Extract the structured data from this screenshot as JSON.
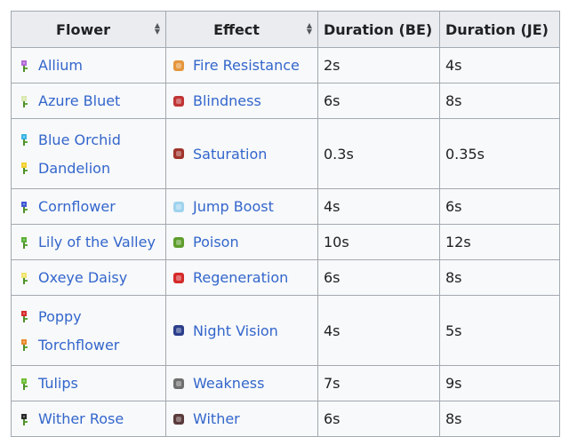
{
  "table": {
    "headers": {
      "flower": "Flower",
      "effect": "Effect",
      "duration_be": "Duration (BE)",
      "duration_je": "Duration (JE)"
    },
    "rows": [
      {
        "flowers": [
          {
            "name": "Allium",
            "icon": "allium-icon",
            "color": "#b36ad8"
          }
        ],
        "effect": {
          "name": "Fire Resistance",
          "icon": "fire-resistance-icon",
          "color": "#e5963c"
        },
        "duration_be": "2s",
        "duration_je": "4s"
      },
      {
        "flowers": [
          {
            "name": "Azure Bluet",
            "icon": "azure-bluet-icon",
            "color": "#d9e8b0"
          }
        ],
        "effect": {
          "name": "Blindness",
          "icon": "blindness-icon",
          "color": "#c03535"
        },
        "duration_be": "6s",
        "duration_je": "8s"
      },
      {
        "flowers": [
          {
            "name": "Blue Orchid",
            "icon": "blue-orchid-icon",
            "color": "#3ab5e6"
          },
          {
            "name": "Dandelion",
            "icon": "dandelion-icon",
            "color": "#f2d12c"
          }
        ],
        "effect": {
          "name": "Saturation",
          "icon": "saturation-icon",
          "color": "#a0342c"
        },
        "duration_be": "0.3s",
        "duration_je": "0.35s"
      },
      {
        "flowers": [
          {
            "name": "Cornflower",
            "icon": "cornflower-icon",
            "color": "#3f5ad4"
          }
        ],
        "effect": {
          "name": "Jump Boost",
          "icon": "jump-boost-icon",
          "color": "#9fd3ee"
        },
        "duration_be": "4s",
        "duration_je": "6s"
      },
      {
        "flowers": [
          {
            "name": "Lily of the Valley",
            "icon": "lily-of-the-valley-icon",
            "color": "#5bb03b"
          }
        ],
        "effect": {
          "name": "Poison",
          "icon": "poison-icon",
          "color": "#5e9e2d"
        },
        "duration_be": "10s",
        "duration_je": "12s"
      },
      {
        "flowers": [
          {
            "name": "Oxeye Daisy",
            "icon": "oxeye-daisy-icon",
            "color": "#f0e46e"
          }
        ],
        "effect": {
          "name": "Regeneration",
          "icon": "regeneration-icon",
          "color": "#d42a2a"
        },
        "duration_be": "6s",
        "duration_je": "8s"
      },
      {
        "flowers": [
          {
            "name": "Poppy",
            "icon": "poppy-icon",
            "color": "#d62c2c"
          },
          {
            "name": "Torchflower",
            "icon": "torchflower-icon",
            "color": "#e88a2e"
          }
        ],
        "effect": {
          "name": "Night Vision",
          "icon": "night-vision-icon",
          "color": "#2c3f8c"
        },
        "duration_be": "4s",
        "duration_je": "5s"
      },
      {
        "flowers": [
          {
            "name": "Tulips",
            "icon": "tulips-icon",
            "color": "#6fbf3a"
          }
        ],
        "effect": {
          "name": "Weakness",
          "icon": "weakness-icon",
          "color": "#6f6f6f"
        },
        "duration_be": "7s",
        "duration_je": "9s"
      },
      {
        "flowers": [
          {
            "name": "Wither Rose",
            "icon": "wither-rose-icon",
            "color": "#2a2a2a"
          }
        ],
        "effect": {
          "name": "Wither",
          "icon": "wither-icon",
          "color": "#5a3a3a"
        },
        "duration_be": "6s",
        "duration_je": "8s"
      }
    ]
  }
}
